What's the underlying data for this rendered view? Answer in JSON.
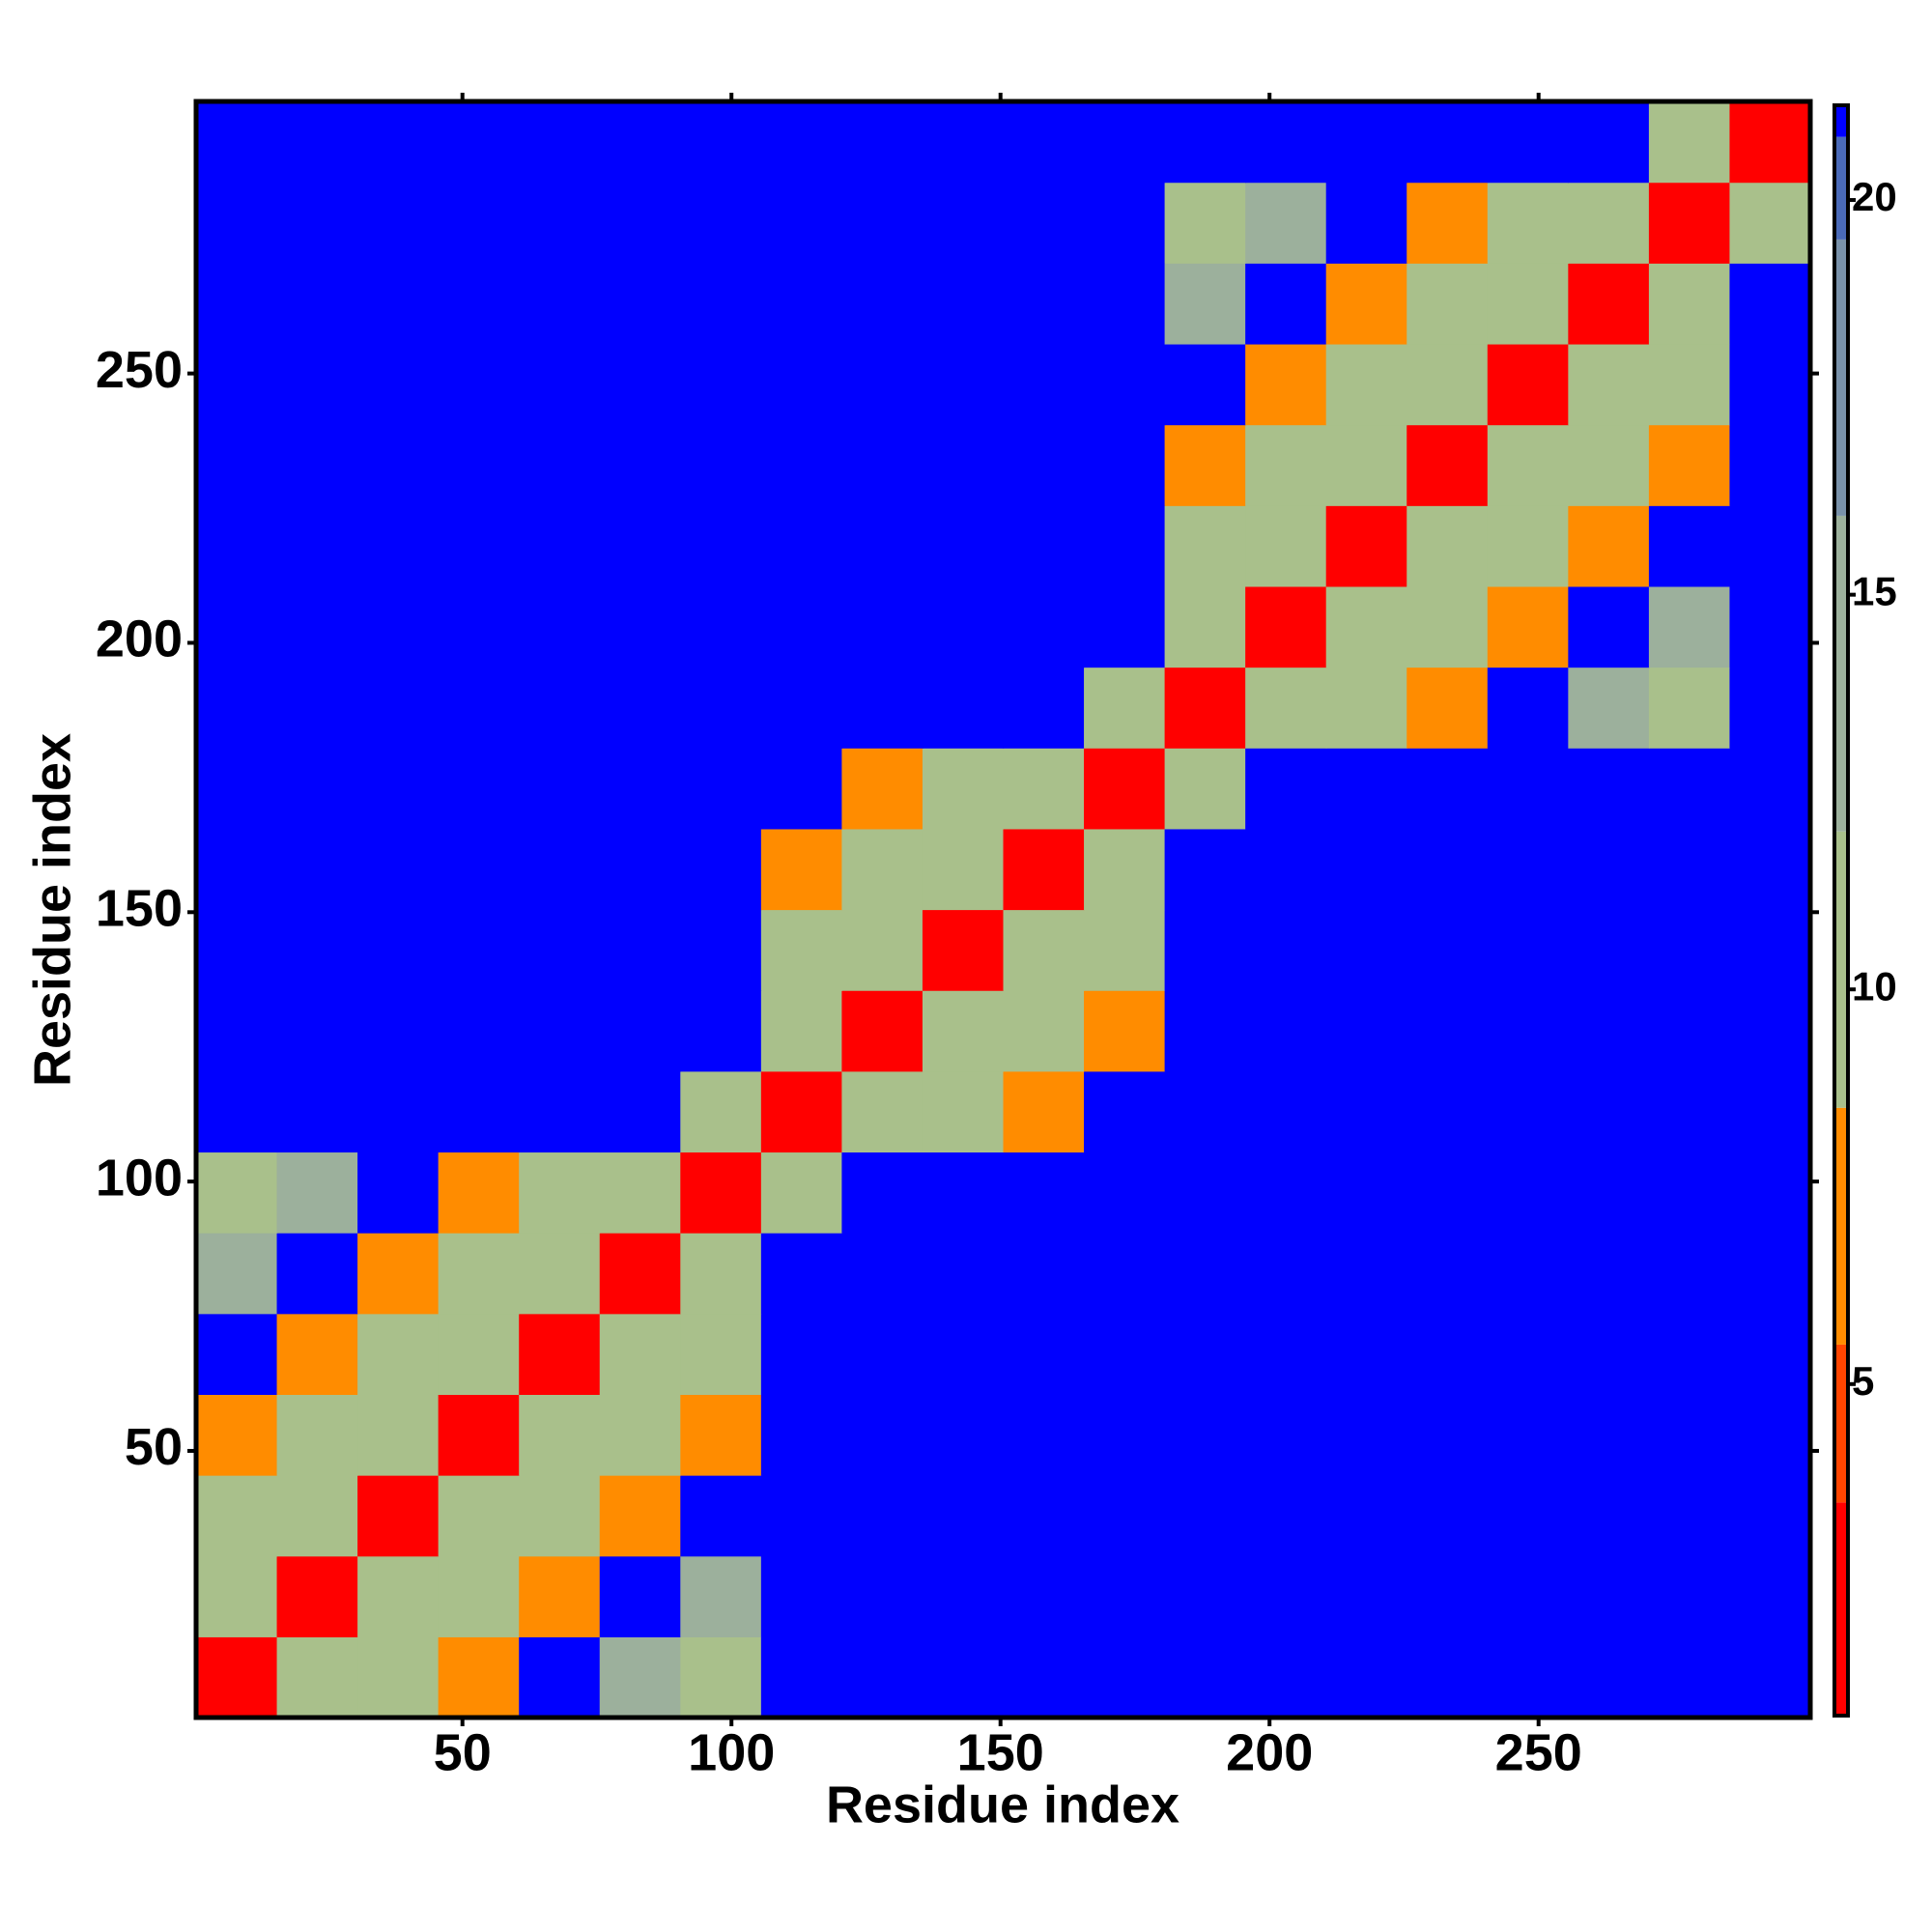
{
  "chart_data": {
    "type": "heatmap",
    "xlabel": "Residue index",
    "ylabel": "Residue index",
    "x": [
      8,
      23,
      38,
      53,
      68,
      83,
      98,
      113,
      128,
      143,
      158,
      173,
      188,
      203,
      218,
      233,
      248,
      263,
      278,
      293
    ],
    "y": [
      8,
      23,
      38,
      53,
      68,
      83,
      98,
      113,
      128,
      143,
      158,
      173,
      188,
      203,
      218,
      233,
      248,
      263,
      278,
      293
    ],
    "xlim": [
      0.5,
      300.5
    ],
    "ylim": [
      0.5,
      300.5
    ],
    "xticks": [
      50,
      100,
      150,
      200,
      250
    ],
    "yticks": [
      50,
      100,
      150,
      200,
      250
    ],
    "clim": [
      0.8,
      21.2
    ],
    "cticks": [
      5,
      10,
      15,
      20
    ],
    "colorscale": [
      [
        0.8,
        "#ff0000"
      ],
      [
        3.5,
        "#ff4500"
      ],
      [
        5.5,
        "#ff8c00"
      ],
      [
        8.5,
        "#a9c08b"
      ],
      [
        12,
        "#9cb09c"
      ],
      [
        16,
        "#7a92aa"
      ],
      [
        19.5,
        "#4a6ab8"
      ],
      [
        20.8,
        "#0000ff"
      ]
    ],
    "z": [
      [
        2,
        10,
        11,
        7,
        21,
        12,
        11,
        21,
        21,
        21,
        21,
        21,
        21,
        21,
        21,
        21,
        21,
        21,
        21,
        21
      ],
      [
        10,
        2,
        10,
        11,
        7,
        21,
        12,
        21,
        21,
        21,
        21,
        21,
        21,
        21,
        21,
        21,
        21,
        21,
        21,
        21
      ],
      [
        11,
        10,
        2,
        10,
        11,
        7,
        21,
        21,
        21,
        21,
        21,
        21,
        21,
        21,
        21,
        21,
        21,
        21,
        21,
        21
      ],
      [
        7,
        11,
        10,
        2,
        10,
        11,
        7,
        21,
        21,
        21,
        21,
        21,
        21,
        21,
        21,
        21,
        21,
        21,
        21,
        21
      ],
      [
        21,
        7,
        11,
        10,
        2,
        10,
        11,
        21,
        21,
        21,
        21,
        21,
        21,
        21,
        21,
        21,
        21,
        21,
        21,
        21
      ],
      [
        12,
        21,
        7,
        11,
        10,
        2,
        10,
        21,
        21,
        21,
        21,
        21,
        21,
        21,
        21,
        21,
        21,
        21,
        21,
        21
      ],
      [
        11,
        12,
        21,
        7,
        11,
        10,
        2,
        10,
        21,
        21,
        21,
        21,
        21,
        21,
        21,
        21,
        21,
        21,
        21,
        21
      ],
      [
        21,
        21,
        21,
        21,
        21,
        21,
        10,
        2,
        10,
        11,
        7,
        21,
        21,
        21,
        21,
        21,
        21,
        21,
        21,
        21
      ],
      [
        21,
        21,
        21,
        21,
        21,
        21,
        21,
        10,
        2,
        10,
        11,
        7,
        21,
        21,
        21,
        21,
        21,
        21,
        21,
        21
      ],
      [
        21,
        21,
        21,
        21,
        21,
        21,
        21,
        11,
        10,
        2,
        10,
        11,
        21,
        21,
        21,
        21,
        21,
        21,
        21,
        21
      ],
      [
        21,
        21,
        21,
        21,
        21,
        21,
        21,
        7,
        11,
        10,
        2,
        10,
        21,
        21,
        21,
        21,
        21,
        21,
        21,
        21
      ],
      [
        21,
        21,
        21,
        21,
        21,
        21,
        21,
        21,
        7,
        11,
        10,
        2,
        10,
        21,
        21,
        21,
        21,
        21,
        21,
        21
      ],
      [
        21,
        21,
        21,
        21,
        21,
        21,
        21,
        21,
        21,
        21,
        21,
        10,
        2,
        10,
        11,
        7,
        21,
        12,
        11,
        21
      ],
      [
        21,
        21,
        21,
        21,
        21,
        21,
        21,
        21,
        21,
        21,
        21,
        21,
        10,
        2,
        10,
        11,
        7,
        21,
        12,
        21
      ],
      [
        21,
        21,
        21,
        21,
        21,
        21,
        21,
        21,
        21,
        21,
        21,
        21,
        11,
        10,
        2,
        10,
        11,
        7,
        21,
        21
      ],
      [
        21,
        21,
        21,
        21,
        21,
        21,
        21,
        21,
        21,
        21,
        21,
        21,
        7,
        11,
        10,
        2,
        10,
        11,
        7,
        21
      ],
      [
        21,
        21,
        21,
        21,
        21,
        21,
        21,
        21,
        21,
        21,
        21,
        21,
        21,
        7,
        11,
        10,
        2,
        10,
        11,
        21
      ],
      [
        21,
        21,
        21,
        21,
        21,
        21,
        21,
        21,
        21,
        21,
        21,
        21,
        12,
        21,
        7,
        11,
        10,
        2,
        10,
        21
      ],
      [
        21,
        21,
        21,
        21,
        21,
        21,
        21,
        21,
        21,
        21,
        21,
        21,
        11,
        12,
        21,
        7,
        11,
        10,
        2,
        10
      ],
      [
        21,
        21,
        21,
        21,
        21,
        21,
        21,
        21,
        21,
        21,
        21,
        21,
        21,
        21,
        21,
        21,
        21,
        21,
        10,
        2
      ]
    ]
  }
}
